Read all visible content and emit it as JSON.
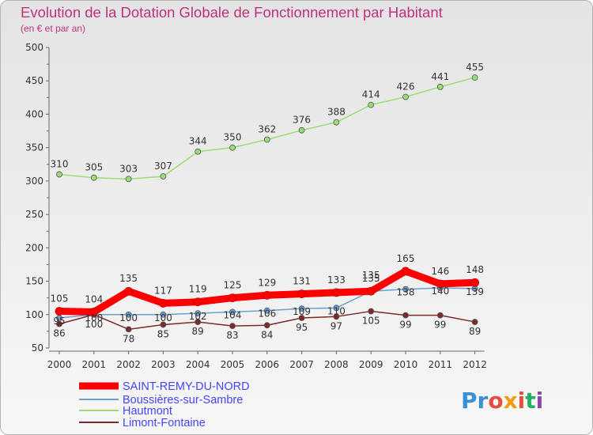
{
  "chart_data": {
    "type": "line",
    "title": "Evolution de la Dotation Globale de Fonctionnement par Habitant",
    "subtitle": "(en € et par an)",
    "xlabel": "",
    "ylabel": "",
    "categories": [
      "2000",
      "2001",
      "2002",
      "2003",
      "2004",
      "2005",
      "2006",
      "2007",
      "2008",
      "2009",
      "2010",
      "2011",
      "2012"
    ],
    "ylim": [
      50,
      500
    ],
    "yticks": [
      50,
      100,
      150,
      200,
      250,
      300,
      350,
      400,
      450,
      500
    ],
    "grid": false,
    "legend_position": "bottom-left",
    "series": [
      {
        "name": "SAINT-REMY-DU-NORD",
        "color": "#ff0000",
        "values": [
          105,
          104,
          135,
          117,
          119,
          125,
          129,
          131,
          133,
          135,
          165,
          146,
          148
        ]
      },
      {
        "name": "Boussières-sur-Sambre",
        "color": "#6a9fd6",
        "values": [
          95,
          100,
          100,
          100,
          102,
          104,
          106,
          109,
          110,
          135,
          138,
          140,
          139
        ]
      },
      {
        "name": "Hautmont",
        "color": "#99dd77",
        "values": [
          310,
          305,
          303,
          307,
          344,
          350,
          362,
          376,
          388,
          414,
          426,
          441,
          455
        ]
      },
      {
        "name": "Limont-Fontaine",
        "color": "#7a2a2a",
        "values": [
          86,
          100,
          78,
          85,
          89,
          83,
          84,
          95,
          97,
          105,
          99,
          99,
          89
        ]
      }
    ]
  },
  "branding": {
    "logo_text": "Proxiti"
  }
}
